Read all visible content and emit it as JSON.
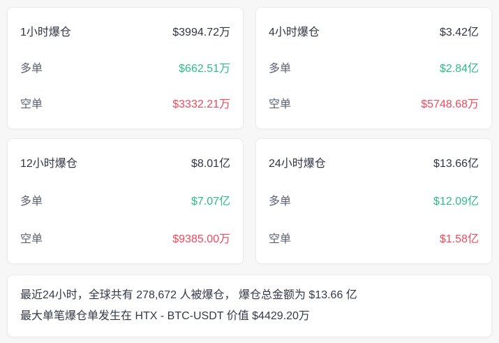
{
  "colors": {
    "page_bg": "#f7f7f8",
    "card_bg": "#ffffff",
    "card_border": "#ececec",
    "dark_text": "#2f3542",
    "label_text": "#596173",
    "long_color": "#2ebd85",
    "short_color": "#f5475d"
  },
  "labels": {
    "long": "多单",
    "short": "空单"
  },
  "cards": [
    {
      "title": "1小时爆仓",
      "total": "$3994.72万",
      "long_value": "$662.51万",
      "short_value": "$3332.21万"
    },
    {
      "title": "4小时爆仓",
      "total": "$3.42亿",
      "long_value": "$2.84亿",
      "short_value": "$5748.68万"
    },
    {
      "title": "12小时爆仓",
      "total": "$8.01亿",
      "long_value": "$7.07亿",
      "short_value": "$9385.00万"
    },
    {
      "title": "24小时爆仓",
      "total": "$13.66亿",
      "long_value": "$12.09亿",
      "short_value": "$1.58亿"
    }
  ],
  "summary": {
    "line1": "最近24小时，全球共有 278,672 人被爆仓， 爆仓总金额为 $13.66 亿",
    "line2": "最大单笔爆仓单发生在 HTX - BTC-USDT 价值 $4429.20万"
  }
}
